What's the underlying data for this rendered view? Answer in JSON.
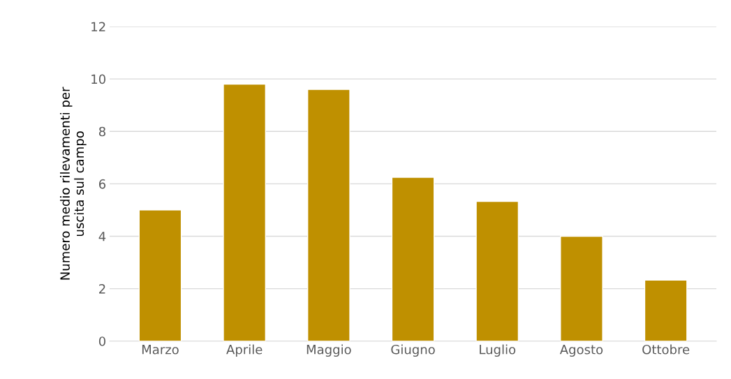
{
  "chart_data": {
    "type": "bar",
    "ylabel": "Numero medio rilevamenti per\nuscita sul campo",
    "categories": [
      "Marzo",
      "Aprile",
      "Maggio",
      "Giugno",
      "Luglio",
      "Agosto",
      "Ottobre"
    ],
    "values": [
      5.0,
      9.8,
      9.6,
      6.25,
      5.33,
      4.0,
      2.33
    ],
    "color": "#bf9000",
    "ylim": [
      0,
      12
    ],
    "yticks": [
      0,
      2,
      4,
      6,
      8,
      10,
      12
    ],
    "grid": "y"
  }
}
